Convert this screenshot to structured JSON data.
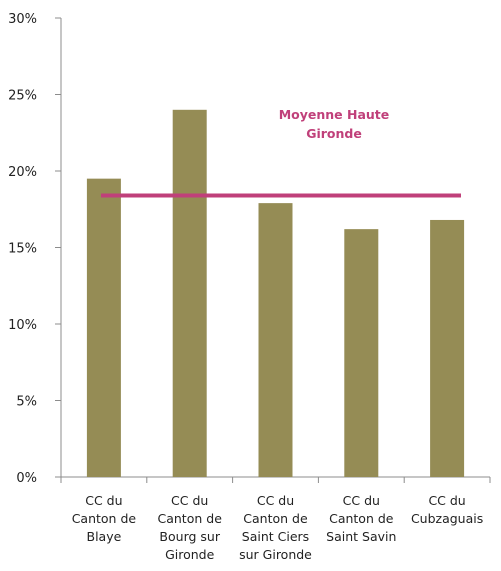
{
  "chart_data": {
    "type": "bar",
    "title": "",
    "xlabel": "",
    "ylabel": "",
    "categories": [
      [
        "CC du",
        "Canton de",
        "Blaye"
      ],
      [
        "CC du",
        "Canton de",
        "Bourg sur",
        "Gironde"
      ],
      [
        "CC du",
        "Canton de",
        "Saint Ciers",
        "sur Gironde"
      ],
      [
        "CC du",
        "Canton de",
        "Saint Savin"
      ],
      [
        "CC du",
        "Cubzaguais"
      ]
    ],
    "values": [
      19.5,
      24.0,
      17.9,
      16.2,
      16.8
    ],
    "ylim": [
      0,
      30
    ],
    "yticks": [
      0,
      5,
      10,
      15,
      20,
      25,
      30
    ],
    "ytick_labels": [
      "0%",
      "5%",
      "10%",
      "15%",
      "20%",
      "25%",
      "30%"
    ],
    "grid": "none",
    "reference_line": {
      "value": 18.4,
      "label": [
        "Moyenne Haute",
        "Gironde"
      ],
      "color": "#c0407a"
    },
    "bar_color": "#958c55",
    "axis_color": "#8c8c8c"
  }
}
